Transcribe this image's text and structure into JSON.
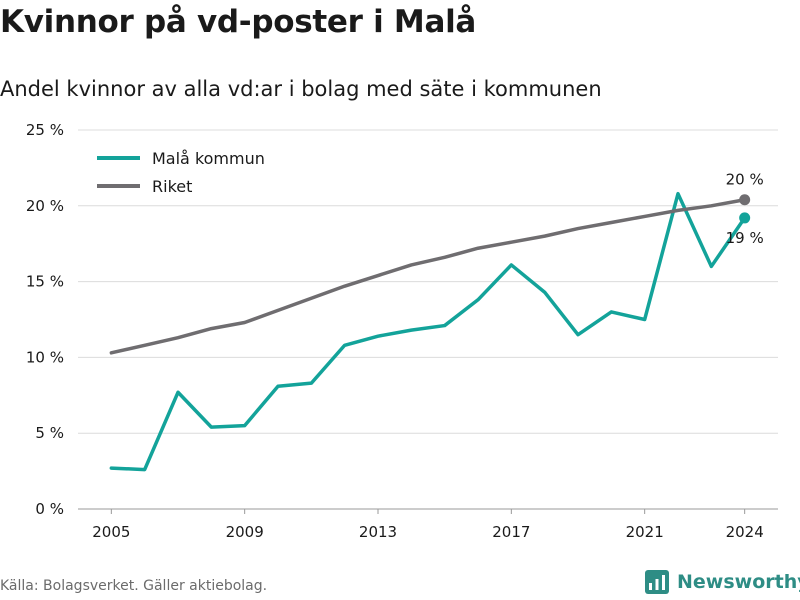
{
  "title": "Kvinnor på vd-poster i Malå",
  "subtitle": "Andel kvinnor av alla vd:ar i bolag med säte i kommunen",
  "source": "Källa: Bolagsverket. Gäller aktiebolag.",
  "brand": "Newsworthy",
  "colors": {
    "mala": "#13a39a",
    "riket": "#6f6d70",
    "grid": "#dcdcdc",
    "text": "#1a1a1a",
    "brand": "#2e8d85"
  },
  "chart_data": {
    "type": "line",
    "x": [
      2005,
      2006,
      2007,
      2008,
      2009,
      2010,
      2011,
      2012,
      2013,
      2014,
      2015,
      2016,
      2017,
      2018,
      2019,
      2020,
      2021,
      2022,
      2023,
      2024
    ],
    "series": [
      {
        "name": "Malå kommun",
        "color": "#13a39a",
        "values": [
          2.7,
          2.6,
          7.7,
          5.4,
          5.5,
          8.1,
          8.3,
          10.8,
          11.4,
          11.8,
          12.1,
          13.8,
          16.1,
          14.3,
          11.5,
          13.0,
          12.5,
          20.8,
          16.0,
          19.2
        ]
      },
      {
        "name": "Riket",
        "color": "#6f6d70",
        "values": [
          10.3,
          10.8,
          11.3,
          11.9,
          12.3,
          13.1,
          13.9,
          14.7,
          15.4,
          16.1,
          16.6,
          17.2,
          17.6,
          18.0,
          18.5,
          18.9,
          19.3,
          19.7,
          20.0,
          20.4
        ]
      }
    ],
    "end_labels": [
      "19 %",
      "20 %"
    ],
    "x_ticks": [
      "2005",
      "2009",
      "2013",
      "2017",
      "2021",
      "2024"
    ],
    "y_ticks": [
      "0 %",
      "5 %",
      "10 %",
      "15 %",
      "20 %",
      "25 %"
    ],
    "ylim": [
      0,
      25
    ],
    "xlim": [
      2004,
      2025
    ],
    "grid": true,
    "legend_position": "top-left"
  }
}
